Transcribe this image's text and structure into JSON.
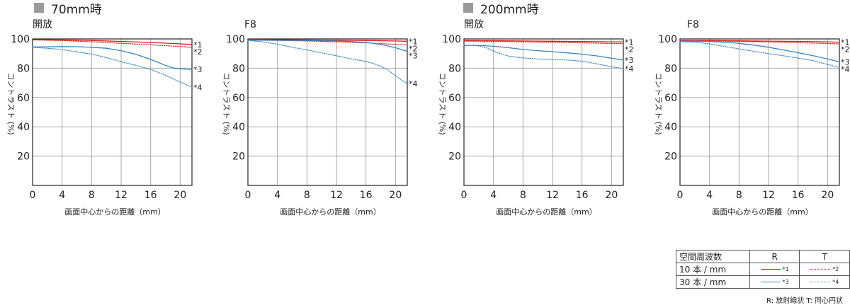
{
  "sections": [
    {
      "title": "70mm時"
    },
    {
      "title": "200mm時"
    }
  ],
  "colors": {
    "red": "#d7191c",
    "blue": "#3a86c4",
    "grid": "#a8a8a8",
    "frame": "#222222",
    "section_marker": "#9a9a9a"
  },
  "chart_data": [
    {
      "type": "line",
      "title": "開放",
      "xlabel": "画面中心からの距離（mm）",
      "ylabel": "コントラスト (%)",
      "xlim": [
        0,
        21.6
      ],
      "ylim": [
        0,
        100
      ],
      "xticks": [
        0,
        4,
        8,
        12,
        16,
        20
      ],
      "yticks": [
        20,
        40,
        60,
        80,
        100
      ],
      "grid": true,
      "series": [
        {
          "name": "*1",
          "color": "red",
          "style": "solid",
          "x": [
            0,
            4,
            8,
            12,
            16,
            20,
            21.6
          ],
          "y": [
            99.5,
            99.3,
            98.9,
            98.3,
            97.6,
            96.6,
            96.2
          ]
        },
        {
          "name": "*2",
          "color": "red",
          "style": "dotted",
          "x": [
            0,
            4,
            8,
            12,
            16,
            20,
            21.6
          ],
          "y": [
            99.3,
            98.9,
            98.0,
            97.0,
            96.0,
            94.8,
            94.3
          ]
        },
        {
          "name": "*3",
          "color": "blue",
          "style": "solid",
          "x": [
            0,
            2,
            4,
            6,
            8,
            10,
            12,
            14,
            16,
            18,
            19,
            20,
            21,
            21.6
          ],
          "y": [
            94.5,
            94.6,
            94.8,
            94.7,
            94.3,
            93.6,
            92.0,
            89.5,
            86.0,
            82.0,
            80.3,
            79.6,
            79.3,
            79.2
          ]
        },
        {
          "name": "*4",
          "color": "blue",
          "style": "dotted",
          "x": [
            0,
            2,
            4,
            6,
            8,
            10,
            12,
            14,
            16,
            18,
            20,
            21.6
          ],
          "y": [
            94.2,
            93.6,
            92.7,
            91.2,
            89.6,
            87.3,
            84.4,
            82.0,
            79.2,
            75.2,
            70.6,
            67.0
          ]
        }
      ],
      "labels": [
        "*1",
        "*2",
        "*3",
        "*4"
      ]
    },
    {
      "type": "line",
      "title": "F8",
      "xlabel": "画面中心からの距離（mm）",
      "ylabel": "コントラスト (%)",
      "xlim": [
        0,
        21.6
      ],
      "ylim": [
        0,
        100
      ],
      "xticks": [
        0,
        4,
        8,
        12,
        16,
        20
      ],
      "yticks": [
        20,
        40,
        60,
        80,
        100
      ],
      "grid": true,
      "series": [
        {
          "name": "*1",
          "color": "red",
          "style": "solid",
          "x": [
            0,
            4,
            8,
            12,
            16,
            20,
            21.6
          ],
          "y": [
            99.6,
            99.5,
            99.3,
            99.1,
            98.9,
            98.6,
            98.4
          ]
        },
        {
          "name": "*2",
          "color": "red",
          "style": "dotted",
          "x": [
            0,
            4,
            8,
            12,
            16,
            20,
            21.6
          ],
          "y": [
            99.4,
            99.1,
            98.6,
            98.0,
            97.3,
            96.3,
            95.8
          ]
        },
        {
          "name": "*3",
          "color": "blue",
          "style": "solid",
          "x": [
            0,
            4,
            8,
            12,
            14,
            16,
            18,
            20,
            21.6
          ],
          "y": [
            99.2,
            99.0,
            98.9,
            98.6,
            98.2,
            97.6,
            96.3,
            94.0,
            91.5
          ]
        },
        {
          "name": "*4",
          "color": "blue",
          "style": "dotted",
          "x": [
            0,
            2,
            4,
            6,
            8,
            10,
            12,
            14,
            16,
            17,
            18,
            19,
            20,
            21,
            21.6
          ],
          "y": [
            99.0,
            98.0,
            96.4,
            94.3,
            92.5,
            90.5,
            88.5,
            86.4,
            84.6,
            83.2,
            81.4,
            78.6,
            75.0,
            71.3,
            69.5
          ]
        }
      ],
      "labels": [
        "*1",
        "*2",
        "*3",
        "*4"
      ]
    },
    {
      "type": "line",
      "title": "開放",
      "xlabel": "画面中心からの距離（mm）",
      "ylabel": "コントラスト (%)",
      "xlim": [
        0,
        21.6
      ],
      "ylim": [
        0,
        100
      ],
      "xticks": [
        0,
        4,
        8,
        12,
        16,
        20
      ],
      "yticks": [
        20,
        40,
        60,
        80,
        100
      ],
      "grid": true,
      "series": [
        {
          "name": "*1",
          "color": "red",
          "style": "solid",
          "x": [
            0,
            4,
            8,
            12,
            16,
            20,
            21.6
          ],
          "y": [
            98.9,
            98.8,
            98.6,
            98.4,
            98.2,
            98.0,
            97.9
          ]
        },
        {
          "name": "*2",
          "color": "red",
          "style": "dotted",
          "x": [
            0,
            4,
            8,
            12,
            16,
            20,
            21.6
          ],
          "y": [
            98.5,
            98.3,
            98.0,
            97.7,
            97.3,
            96.9,
            96.7
          ]
        },
        {
          "name": "*3",
          "color": "blue",
          "style": "solid",
          "x": [
            0,
            2,
            4,
            6,
            8,
            10,
            12,
            14,
            16,
            18,
            20,
            21.6
          ],
          "y": [
            95.6,
            95.6,
            95.0,
            94.0,
            92.8,
            92.0,
            91.3,
            90.5,
            89.6,
            88.4,
            86.8,
            85.6
          ]
        },
        {
          "name": "*4",
          "color": "blue",
          "style": "dotted",
          "x": [
            0,
            1,
            2,
            3,
            4,
            5,
            6,
            8,
            10,
            12,
            14,
            16,
            18,
            20,
            21.6
          ],
          "y": [
            95.4,
            95.6,
            95.2,
            94.0,
            91.8,
            89.8,
            88.3,
            87.0,
            86.3,
            86.0,
            85.6,
            84.8,
            83.0,
            81.0,
            79.8
          ]
        }
      ],
      "labels": [
        "*1",
        "*2",
        "*3",
        "*4"
      ]
    },
    {
      "type": "line",
      "title": "F8",
      "xlabel": "画面中心からの距離（mm）",
      "ylabel": "コントラスト (%)",
      "xlim": [
        0,
        21.6
      ],
      "ylim": [
        0,
        100
      ],
      "xticks": [
        0,
        4,
        8,
        12,
        16,
        20
      ],
      "yticks": [
        20,
        40,
        60,
        80,
        100
      ],
      "grid": true,
      "series": [
        {
          "name": "*1",
          "color": "red",
          "style": "solid",
          "x": [
            0,
            4,
            8,
            12,
            16,
            20,
            21.6
          ],
          "y": [
            99.0,
            98.9,
            98.7,
            98.5,
            98.3,
            98.0,
            97.8
          ]
        },
        {
          "name": "*2",
          "color": "red",
          "style": "dotted",
          "x": [
            0,
            4,
            8,
            12,
            16,
            20,
            21.6
          ],
          "y": [
            98.8,
            98.6,
            98.3,
            97.9,
            97.4,
            96.9,
            96.6
          ]
        },
        {
          "name": "*3",
          "color": "blue",
          "style": "solid",
          "x": [
            0,
            2,
            4,
            6,
            8,
            10,
            12,
            14,
            16,
            18,
            20,
            21.6
          ],
          "y": [
            98.4,
            98.4,
            98.2,
            97.8,
            97.0,
            95.8,
            94.3,
            92.5,
            90.6,
            88.6,
            86.3,
            84.3
          ]
        },
        {
          "name": "*4",
          "color": "blue",
          "style": "dotted",
          "x": [
            0,
            2,
            4,
            6,
            8,
            10,
            12,
            14,
            16,
            18,
            20,
            21.6
          ],
          "y": [
            98.2,
            97.8,
            96.6,
            94.9,
            93.2,
            91.6,
            90.0,
            88.5,
            86.9,
            85.2,
            82.6,
            80.5
          ]
        }
      ],
      "labels": [
        "*1",
        "*2",
        "*3",
        "*4"
      ]
    }
  ],
  "legend": {
    "header": {
      "label": "空間周波数",
      "col_r": "R",
      "col_t": "T"
    },
    "rows": [
      {
        "label": "10 本 / mm",
        "r_tag": "*1",
        "t_tag": "*2",
        "color": "red"
      },
      {
        "label": "30 本 / mm",
        "r_tag": "*3",
        "t_tag": "*4",
        "color": "blue"
      }
    ],
    "note": "R: 放射線状  T: 同心円状"
  }
}
